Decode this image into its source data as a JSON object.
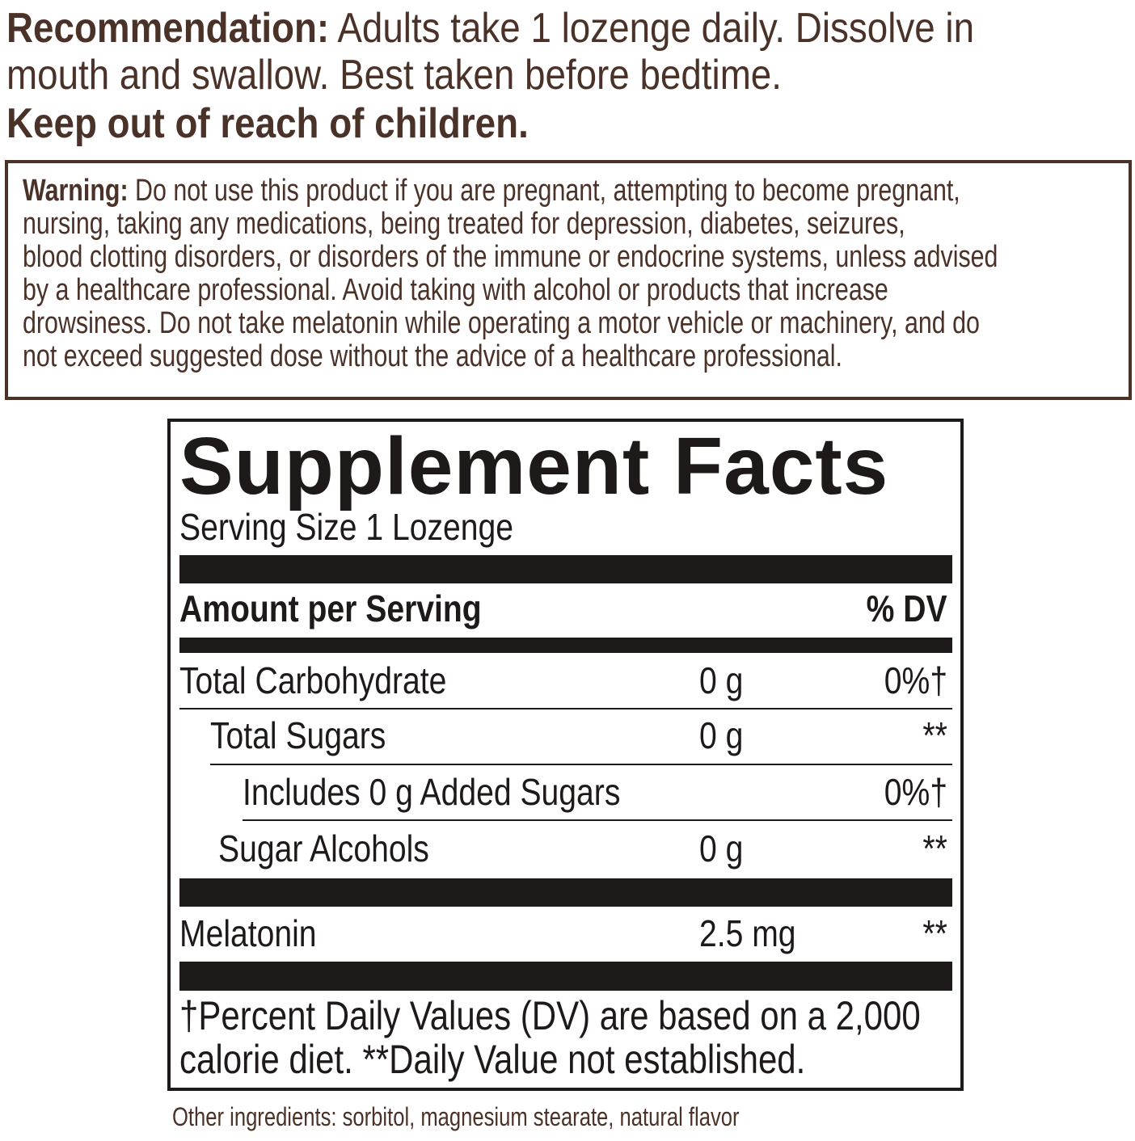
{
  "recommendation": {
    "label": "Recommendation:",
    "line1": " Adults take 1 lozenge daily. Dissolve in",
    "line2": "mouth and swallow. Best taken before bedtime.",
    "keep_out": "Keep out of reach of children."
  },
  "warning": {
    "label": "Warning:",
    "lines": [
      " Do not use this product if you are pregnant, attempting to become pregnant,",
      "nursing, taking any medications, being treated for depression, diabetes, seizures,",
      "blood clotting disorders, or disorders of the immune or endocrine systems, unless advised",
      "by a healthcare professional. Avoid taking with alcohol or products that increase",
      "drowsiness. Do not take melatonin while operating a motor vehicle or machinery, and do",
      "not exceed suggested dose without the advice of a healthcare professional."
    ]
  },
  "facts": {
    "title": "Supplement Facts",
    "serving_size": "Serving Size 1 Lozenge",
    "header_amount": "Amount per Serving",
    "header_dv": "% DV",
    "rows": [
      {
        "name": "Total Carbohydrate",
        "amount": "0 g",
        "dv": "0%†"
      },
      {
        "name": "Total Sugars",
        "amount": "0 g",
        "dv": "**"
      },
      {
        "name": "Includes 0 g Added Sugars",
        "amount": "",
        "dv": "0%†"
      },
      {
        "name": "Sugar Alcohols",
        "amount": "0 g",
        "dv": "**"
      },
      {
        "name": "Melatonin",
        "amount": "2.5 mg",
        "dv": "**"
      }
    ],
    "footnote_line1": "†Percent Daily Values (DV) are based on a 2,000",
    "footnote_line2": "calorie diet. **Daily Value not established."
  },
  "other_ingredients": "Other ingredients: sorbitol, magnesium stearate, natural flavor",
  "colors": {
    "brown": "#4b3228",
    "black": "#1e1a19"
  }
}
